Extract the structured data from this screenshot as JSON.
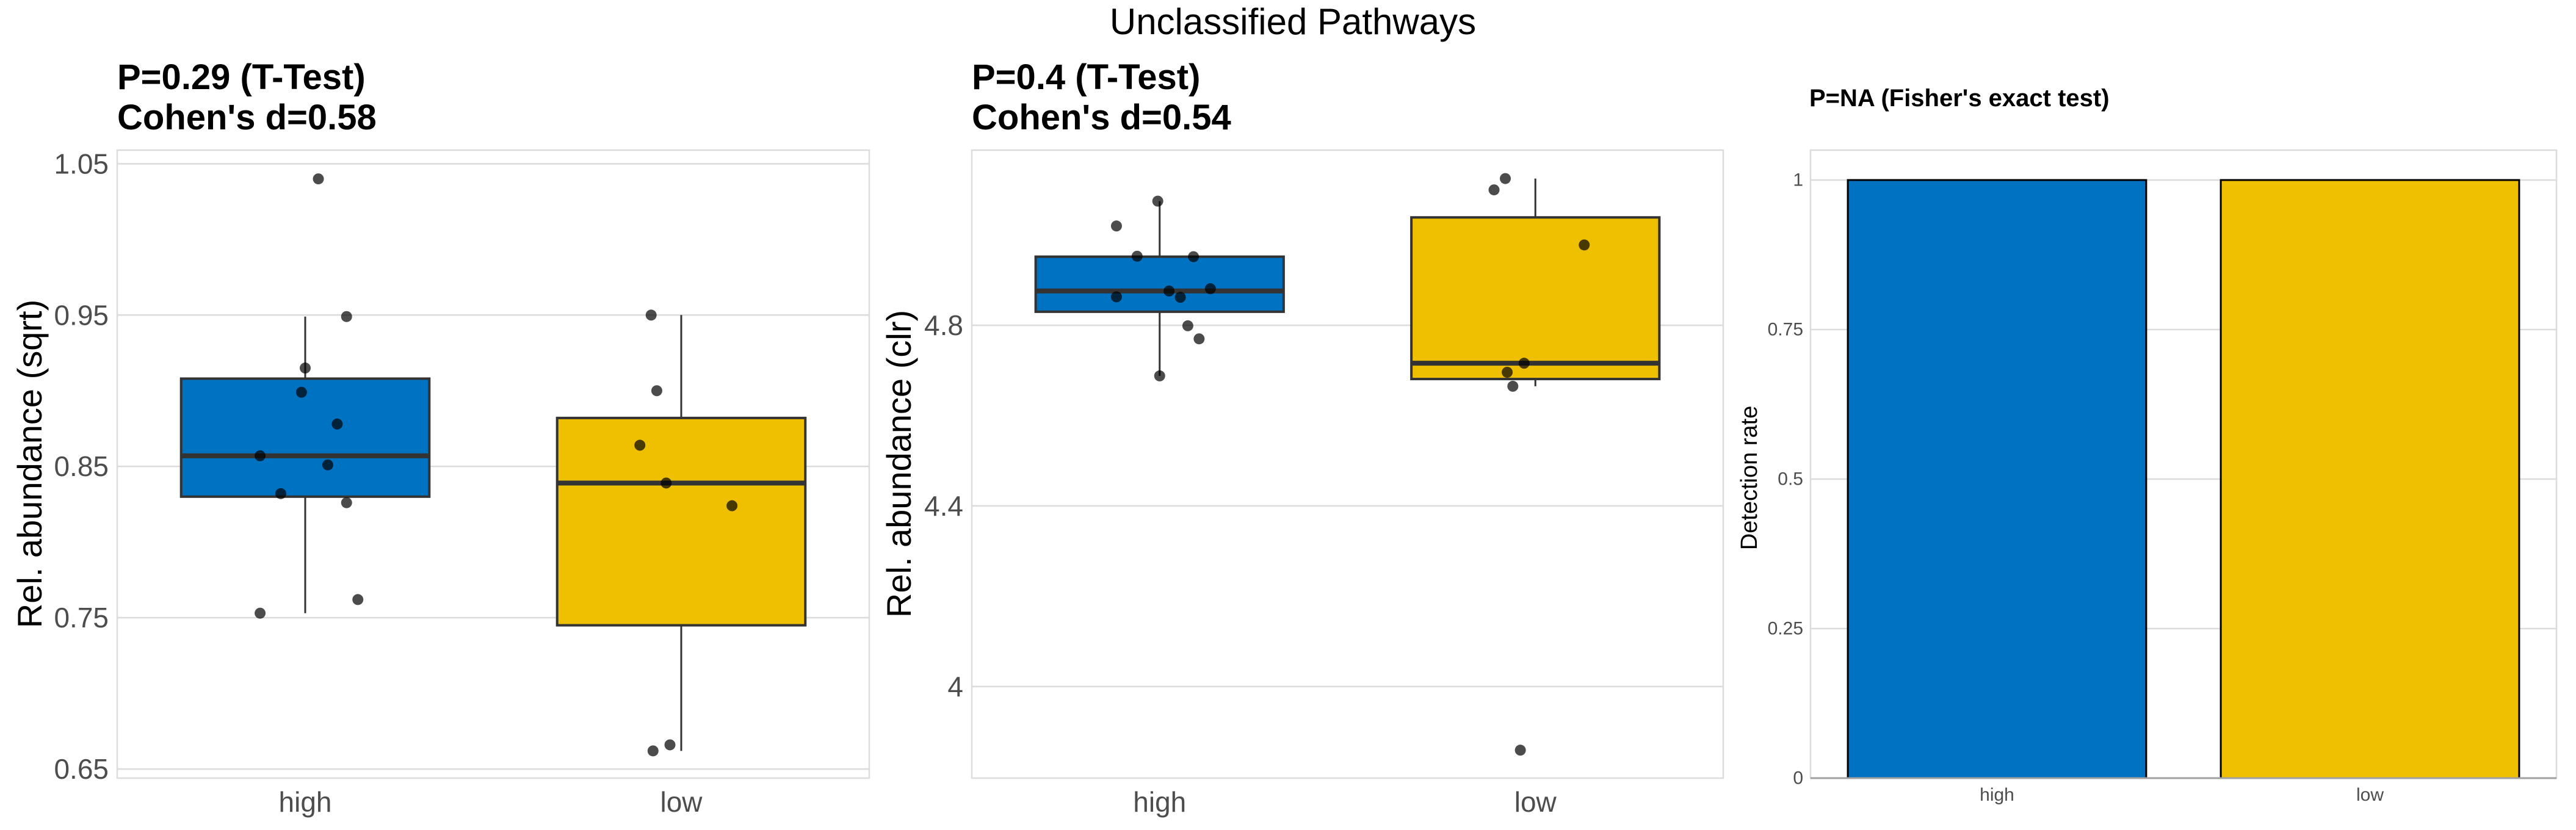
{
  "chart_data": {
    "title": "Unclassified Pathways",
    "panels": [
      {
        "type": "box",
        "title_lines": [
          "P=0.29 (T-Test)",
          "Cohen's d=0.58"
        ],
        "xlabel": "",
        "ylabel": "Rel. abundance (sqrt)",
        "ylim": [
          0.644,
          1.059
        ],
        "yticks": [
          0.65,
          0.75,
          0.85,
          0.95,
          1.05
        ],
        "ytick_labels": [
          "0.65",
          "0.75",
          "0.85",
          "0.95",
          "1.05"
        ],
        "grid": true,
        "categories": [
          "high",
          "low"
        ],
        "series": [
          {
            "name": "high",
            "color": "#0072C2",
            "box": {
              "whisker_low": 0.753,
              "q1": 0.83,
              "median": 0.857,
              "q3": 0.908,
              "whisker_high": 0.949
            },
            "points": [
              {
                "jitter": 0.07,
                "y": 1.04
              },
              {
                "jitter": 0.22,
                "y": 0.949
              },
              {
                "jitter": 0.0,
                "y": 0.915
              },
              {
                "jitter": -0.02,
                "y": 0.899
              },
              {
                "jitter": 0.17,
                "y": 0.878
              },
              {
                "jitter": -0.24,
                "y": 0.857
              },
              {
                "jitter": 0.12,
                "y": 0.851
              },
              {
                "jitter": -0.13,
                "y": 0.832
              },
              {
                "jitter": 0.22,
                "y": 0.826
              },
              {
                "jitter": 0.28,
                "y": 0.762
              },
              {
                "jitter": -0.24,
                "y": 0.753
              }
            ]
          },
          {
            "name": "low",
            "color": "#EFC000",
            "box": {
              "whisker_low": 0.662,
              "q1": 0.745,
              "median": 0.839,
              "q3": 0.882,
              "whisker_high": 0.95
            },
            "points": [
              {
                "jitter": -0.16,
                "y": 0.95
              },
              {
                "jitter": -0.13,
                "y": 0.9
              },
              {
                "jitter": -0.22,
                "y": 0.864
              },
              {
                "jitter": -0.08,
                "y": 0.839
              },
              {
                "jitter": 0.27,
                "y": 0.824
              },
              {
                "jitter": -0.06,
                "y": 0.666
              },
              {
                "jitter": -0.15,
                "y": 0.662
              }
            ]
          }
        ]
      },
      {
        "type": "box",
        "title_lines": [
          "P=0.4 (T-Test)",
          "Cohen's d=0.54"
        ],
        "xlabel": "",
        "ylabel": "Rel. abundance (clr)",
        "ylim": [
          3.797,
          5.188
        ],
        "yticks": [
          4.0,
          4.4,
          4.8
        ],
        "ytick_labels": [
          "4",
          "4.4",
          "4.8"
        ],
        "grid": true,
        "categories": [
          "high",
          "low"
        ],
        "series": [
          {
            "name": "high",
            "color": "#0072C2",
            "box": {
              "whisker_low": 4.688,
              "q1": 4.83,
              "median": 4.876,
              "q3": 4.952,
              "whisker_high": 5.075
            },
            "points": [
              {
                "jitter": -0.01,
                "y": 5.075
              },
              {
                "jitter": -0.23,
                "y": 5.02
              },
              {
                "jitter": -0.12,
                "y": 4.953
              },
              {
                "jitter": 0.18,
                "y": 4.952
              },
              {
                "jitter": 0.27,
                "y": 4.881
              },
              {
                "jitter": 0.05,
                "y": 4.876
              },
              {
                "jitter": -0.23,
                "y": 4.863
              },
              {
                "jitter": 0.11,
                "y": 4.862
              },
              {
                "jitter": 0.15,
                "y": 4.799
              },
              {
                "jitter": 0.21,
                "y": 4.77
              },
              {
                "jitter": 0.0,
                "y": 4.688
              }
            ]
          },
          {
            "name": "low",
            "color": "#EFC000",
            "box": {
              "whisker_low": 4.665,
              "q1": 4.681,
              "median": 4.716,
              "q3": 5.039,
              "whisker_high": 5.125
            },
            "points": [
              {
                "jitter": -0.16,
                "y": 5.125
              },
              {
                "jitter": -0.22,
                "y": 5.1
              },
              {
                "jitter": 0.26,
                "y": 4.978
              },
              {
                "jitter": -0.06,
                "y": 4.716
              },
              {
                "jitter": -0.15,
                "y": 4.696
              },
              {
                "jitter": -0.12,
                "y": 4.665
              },
              {
                "jitter": -0.08,
                "y": 3.859
              }
            ]
          }
        ]
      },
      {
        "type": "bar",
        "title_lines": [
          "P=NA (Fisher's exact test)"
        ],
        "xlabel": "",
        "ylabel": "Detection rate",
        "ylim": [
          0,
          1.05
        ],
        "yticks": [
          0,
          0.25,
          0.5,
          0.75,
          1
        ],
        "ytick_labels": [
          "0",
          "0.25",
          "0.5",
          "0.75",
          "1"
        ],
        "grid": true,
        "categories": [
          "high",
          "low"
        ],
        "values": [
          1,
          1
        ],
        "colors": [
          "#0072C2",
          "#EFC000"
        ]
      }
    ]
  }
}
